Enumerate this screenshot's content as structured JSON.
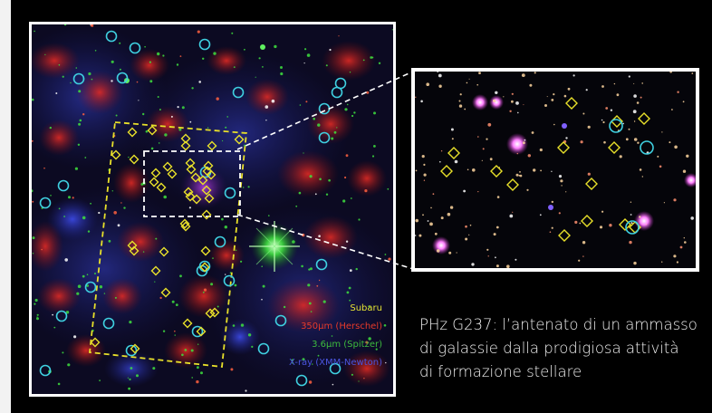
{
  "legend": {
    "items": [
      {
        "label": "Subaru",
        "color": "#e6e233"
      },
      {
        "label": "350μm (Herschel)",
        "color": "#e83a2a"
      },
      {
        "label": "3.6μm (Spitzer)",
        "color": "#3dbb3d"
      },
      {
        "label": "X-ray (XMM-Newton)",
        "color": "#4a55e0"
      }
    ]
  },
  "caption": {
    "line1": "PHz G237: l’antenato di un ammasso",
    "line2": "di galassie dalla prodigiosa attività",
    "line3": "di formazione stellare"
  },
  "colors": {
    "marker_diamond": "#e8e02a",
    "marker_circle": "#3fd0e0",
    "region_outline": "#e8e02a",
    "zoom_box": "#ffffff"
  }
}
